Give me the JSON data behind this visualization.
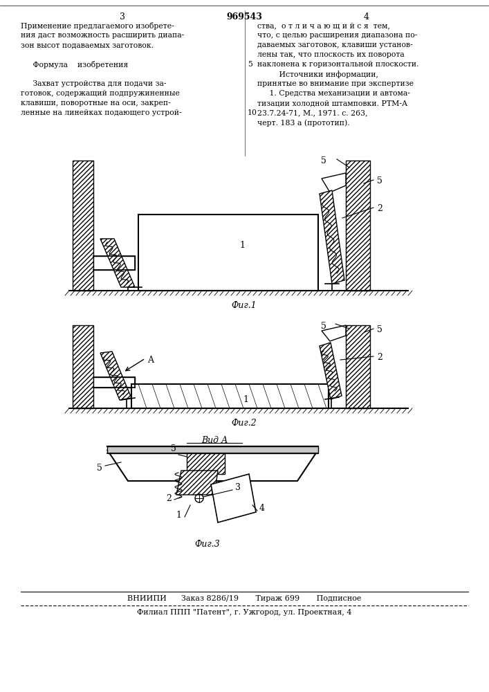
{
  "bg_color": "#ffffff",
  "page_num_left": "3",
  "page_num_center": "969543",
  "page_num_right": "4",
  "text_left": [
    "Применение предлагаемого изобрете-",
    "ния даст возможность расширить диапа-",
    "зон высот подаваемых заготовок.",
    "",
    "     Формула    изобретения",
    "",
    "     Захват устройства для подачи за-",
    "готовок, содержащий подпружиненные",
    "клавиши, поворотные на оси, закреп-",
    "ленные на линейках подающего устрой-"
  ],
  "text_right": [
    "ства,  о т л и ч а ю щ и й с я  тем,",
    "что, с целью расширения диапазона по-",
    "даваемых заготовок, клавиши установ-",
    "лены так, что плоскость их поворота",
    "наклонена к горизонтальной плоскости.",
    "         Источники информации,",
    "принятые во внимание при экспертизе",
    "     1. Средства механизации и автома-",
    "тизации холодной штамповки. РТМ-А",
    "23.7.24-71, М., 1971. с. 263,",
    "черт. 183 а (прототип)."
  ],
  "fig1_label": "Фиг.1",
  "fig2_label": "Фиг.2",
  "fig3_label": "Фиг.3",
  "vid_label": "Вид А",
  "bottom1": "ВНИИПИ      Заказ 8286/19       Тираж 699       Подписное",
  "bottom2": "Филиал ППП \"Патент\", г. Ужгород, ул. Проектная, 4"
}
